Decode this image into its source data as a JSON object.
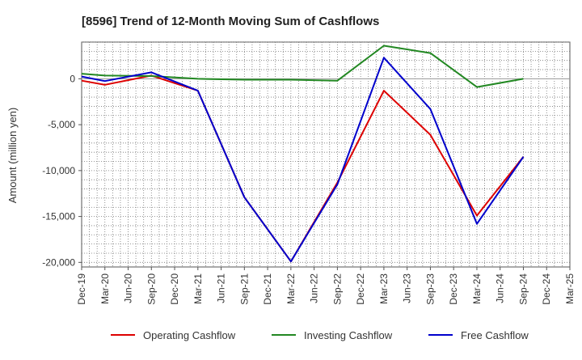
{
  "chart_data": {
    "type": "line",
    "title": "[8596]  Trend of 12-Month Moving Sum of Cashflows",
    "ylabel": "Amount (million yen)",
    "xlabel": "",
    "ylim": [
      -20500,
      4000
    ],
    "yticks": [
      0,
      -5000,
      -10000,
      -15000,
      -20000
    ],
    "ytick_labels": [
      "0",
      "-5,000",
      "-10,000",
      "-15,000",
      "-20,000"
    ],
    "categories": [
      "Dec-19",
      "Mar-20",
      "Jun-20",
      "Sep-20",
      "Dec-20",
      "Mar-21",
      "Jun-21",
      "Sep-21",
      "Dec-21",
      "Mar-22",
      "Jun-22",
      "Sep-22",
      "Dec-22",
      "Mar-23",
      "Jun-23",
      "Sep-23",
      "Dec-23",
      "Mar-24",
      "Jun-24",
      "Sep-24",
      "Dec-24",
      "Mar-25"
    ],
    "grid": true,
    "legend_position": "bottom",
    "series": [
      {
        "name": "Operating Cashflow",
        "color": "#dd0000",
        "values": [
          -200,
          -650,
          null,
          350,
          null,
          -1300,
          null,
          -12900,
          null,
          -19900,
          null,
          -11300,
          null,
          -1300,
          null,
          -6100,
          null,
          -14900,
          null,
          -8500,
          null,
          null
        ]
      },
      {
        "name": "Investing Cashflow",
        "color": "#228822",
        "values": [
          550,
          350,
          null,
          300,
          null,
          0,
          null,
          -100,
          null,
          -100,
          null,
          -200,
          null,
          3600,
          null,
          2800,
          null,
          -900,
          null,
          0,
          null,
          null
        ]
      },
      {
        "name": "Free Cashflow",
        "color": "#0000cc",
        "values": [
          250,
          -250,
          null,
          700,
          null,
          -1300,
          null,
          -12900,
          null,
          -19900,
          null,
          -11500,
          null,
          2300,
          null,
          -3300,
          null,
          -15800,
          null,
          -8500,
          null,
          null
        ]
      }
    ]
  }
}
